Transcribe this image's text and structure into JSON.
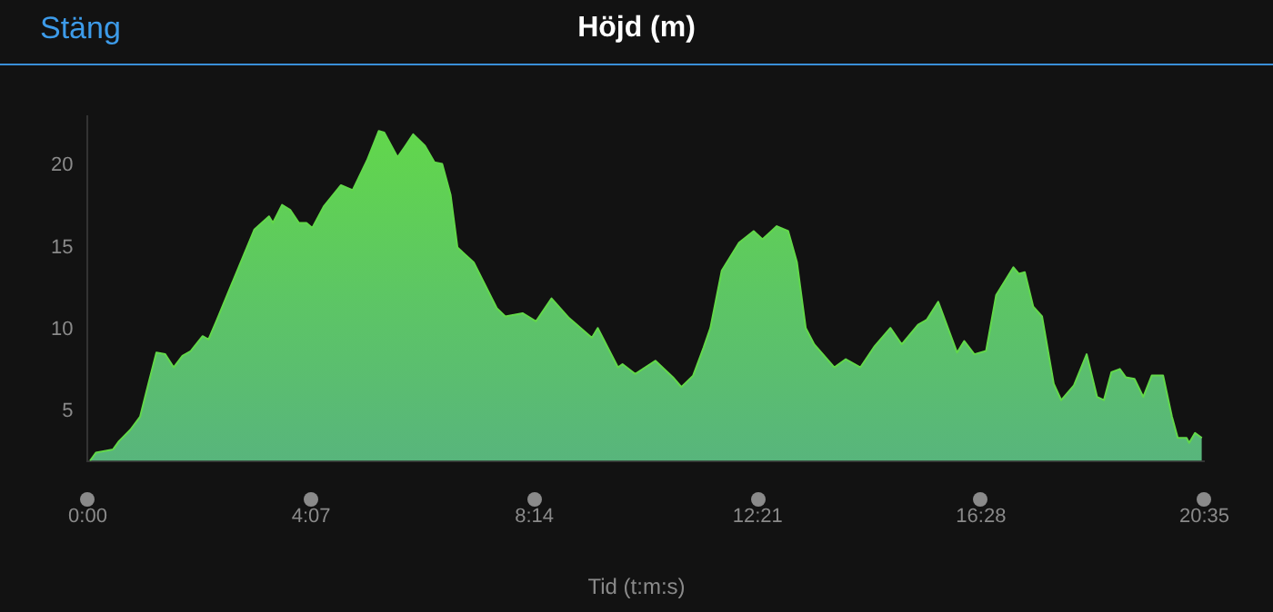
{
  "chart_data": {
    "type": "area",
    "title": "Höjd (m)",
    "xlabel": "Tid (t:m:s)",
    "annotations": [
      "Stäng"
    ],
    "x": [
      0.042,
      0.15,
      0.468,
      0.576,
      0.786,
      0.966,
      1.11,
      1.266,
      1.428,
      1.584,
      1.746,
      1.902,
      2.118,
      2.226,
      2.382,
      2.544,
      2.808,
      3.072,
      3.342,
      3.414,
      3.582,
      3.732,
      3.894,
      4.032,
      4.14,
      4.35,
      4.668,
      4.884,
      5.148,
      5.364,
      5.466,
      5.712,
      5.838,
      6.0,
      6.216,
      6.39,
      6.534,
      6.69,
      6.816,
      7.116,
      7.542,
      7.698,
      8.016,
      8.262,
      8.55,
      8.874,
      9.294,
      9.402,
      9.774,
      9.858,
      10.092,
      10.464,
      10.788,
      10.944,
      11.16,
      11.352,
      11.478,
      11.688,
      12.006,
      12.276,
      12.438,
      12.702,
      12.912,
      13.074,
      13.236,
      13.392,
      13.764,
      13.974,
      14.244,
      14.508,
      14.796,
      15.006,
      15.306,
      15.468,
      15.678,
      16.026,
      16.158,
      16.344,
      16.56,
      16.746,
      17.064,
      17.166,
      17.274,
      17.43,
      17.592,
      17.808,
      17.946,
      18.18,
      18.414,
      18.606,
      18.732,
      18.87,
      19.026,
      19.134,
      19.296,
      19.458,
      19.614,
      19.824,
      19.986,
      20.094,
      20.256,
      20.304,
      20.412,
      20.538
    ],
    "series": [
      {
        "color": "#62d84a",
        "values": [
          2.0,
          2.5,
          2.7,
          3.2,
          3.9,
          4.7,
          6.6,
          8.6,
          8.5,
          7.7,
          8.4,
          8.7,
          9.6,
          9.4,
          10.6,
          11.9,
          14.0,
          16.1,
          16.9,
          16.5,
          17.6,
          17.3,
          16.5,
          16.5,
          16.2,
          17.5,
          18.8,
          18.5,
          20.3,
          22.1,
          22.0,
          20.5,
          21.1,
          21.9,
          21.2,
          20.2,
          20.1,
          18.2,
          15.0,
          14.1,
          11.3,
          10.8,
          11.0,
          10.5,
          11.9,
          10.7,
          9.5,
          10.1,
          7.7,
          7.9,
          7.3,
          8.1,
          7.1,
          6.5,
          7.2,
          8.9,
          10.1,
          13.6,
          15.3,
          16.0,
          15.5,
          16.3,
          16.0,
          14.1,
          10.1,
          9.1,
          7.7,
          8.2,
          7.7,
          9.0,
          10.1,
          9.1,
          10.3,
          10.6,
          11.7,
          8.6,
          9.3,
          8.5,
          8.7,
          12.1,
          13.8,
          13.4,
          13.5,
          11.4,
          10.8,
          6.7,
          5.7,
          6.6,
          8.5,
          5.9,
          5.7,
          7.4,
          7.6,
          7.1,
          7.0,
          5.9,
          7.2,
          7.2,
          4.7,
          3.4,
          3.4,
          3.1,
          3.7,
          3.4
        ]
      }
    ],
    "xlim": [
      0,
      20.5833
    ],
    "xticks": [
      {
        "value": 0,
        "label": "0:00"
      },
      {
        "value": 4.1167,
        "label": "4:07"
      },
      {
        "value": 8.2333,
        "label": "8:14"
      },
      {
        "value": 12.35,
        "label": "12:21"
      },
      {
        "value": 16.4667,
        "label": "16:28"
      },
      {
        "value": 20.5833,
        "label": "20:35"
      }
    ],
    "ylim": [
      2,
      23
    ],
    "yticks": [
      5,
      10,
      15,
      20
    ],
    "legend": false,
    "marker": "none"
  }
}
